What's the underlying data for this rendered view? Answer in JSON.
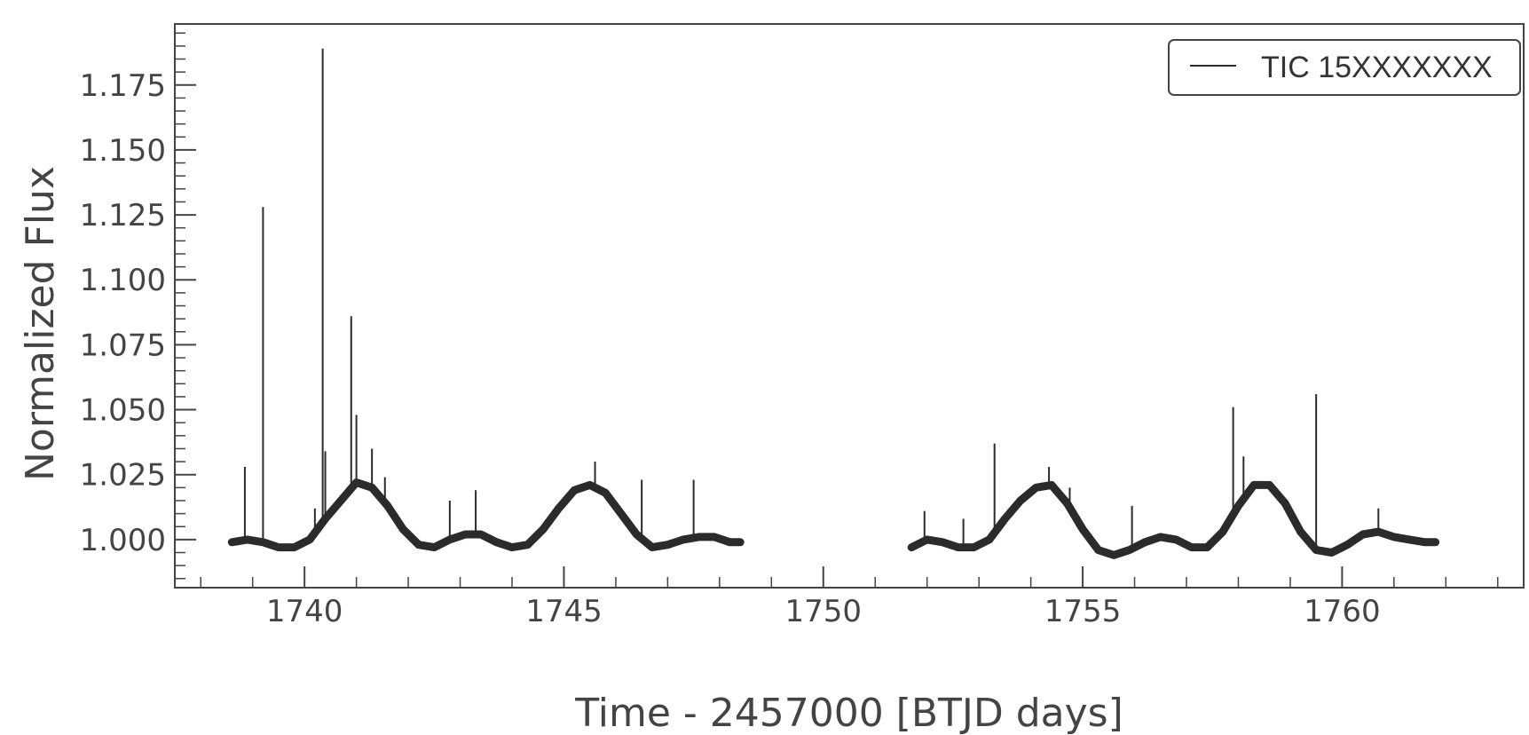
{
  "chart_data": {
    "type": "line",
    "title": "",
    "xlabel": "Time - 2457000 [BTJD days]",
    "ylabel": "Normalized Flux",
    "xlim": [
      1737.5,
      1763.5
    ],
    "ylim": [
      0.9815,
      1.1985
    ],
    "x_ticks": [
      1740,
      1745,
      1750,
      1755,
      1760
    ],
    "y_ticks": [
      1.0,
      1.025,
      1.05,
      1.075,
      1.1,
      1.125,
      1.15,
      1.175
    ],
    "x_tick_labels": [
      "1740",
      "1745",
      "1750",
      "1755",
      "1760"
    ],
    "y_tick_labels": [
      "1.000",
      "1.025",
      "1.050",
      "1.075",
      "1.100",
      "1.125",
      "1.150",
      "1.175"
    ],
    "grid": false,
    "legend_position": "top-right",
    "line_color": "#2b2b2b",
    "series": [
      {
        "name": "TIC 15XXXXXXX",
        "segments": [
          {
            "x": [
              1738.6,
              1738.9,
              1739.2,
              1739.5,
              1739.8,
              1740.1,
              1740.4,
              1740.7,
              1741.0,
              1741.3,
              1741.6,
              1741.9,
              1742.2,
              1742.5,
              1742.8,
              1743.1,
              1743.4,
              1743.7,
              1744.0,
              1744.3,
              1744.6,
              1744.9,
              1745.2,
              1745.5,
              1745.8,
              1746.1,
              1746.4,
              1746.7,
              1747.0,
              1747.3,
              1747.6,
              1747.9,
              1748.2,
              1748.4
            ],
            "y": [
              0.999,
              1.0,
              0.999,
              0.997,
              0.997,
              1.0,
              1.008,
              1.015,
              1.022,
              1.02,
              1.013,
              1.004,
              0.998,
              0.997,
              1.0,
              1.002,
              1.002,
              0.999,
              0.997,
              0.998,
              1.004,
              1.012,
              1.019,
              1.021,
              1.018,
              1.01,
              1.002,
              0.997,
              0.998,
              1.0,
              1.001,
              1.001,
              0.999,
              0.999
            ]
          },
          {
            "x": [
              1751.7,
              1752.0,
              1752.3,
              1752.6,
              1752.9,
              1753.2,
              1753.5,
              1753.8,
              1754.1,
              1754.4,
              1754.7,
              1755.0,
              1755.3,
              1755.6,
              1755.9,
              1756.2,
              1756.5,
              1756.8,
              1757.1,
              1757.4,
              1757.7,
              1758.0,
              1758.3,
              1758.6,
              1758.9,
              1759.2,
              1759.5,
              1759.8,
              1760.1,
              1760.4,
              1760.7,
              1761.0,
              1761.3,
              1761.6,
              1761.8
            ],
            "y": [
              0.997,
              1.0,
              0.999,
              0.997,
              0.997,
              1.0,
              1.008,
              1.015,
              1.02,
              1.021,
              1.014,
              1.004,
              0.996,
              0.994,
              0.996,
              0.999,
              1.001,
              1.0,
              0.997,
              0.997,
              1.003,
              1.013,
              1.021,
              1.021,
              1.014,
              1.003,
              0.996,
              0.995,
              0.998,
              1.002,
              1.003,
              1.001,
              1.0,
              0.999,
              0.999
            ]
          }
        ],
        "flares": [
          {
            "x": 1738.85,
            "y": 1.028
          },
          {
            "x": 1739.2,
            "y": 1.128
          },
          {
            "x": 1740.2,
            "y": 1.012
          },
          {
            "x": 1740.35,
            "y": 1.189
          },
          {
            "x": 1740.4,
            "y": 1.034
          },
          {
            "x": 1740.9,
            "y": 1.086
          },
          {
            "x": 1741.0,
            "y": 1.048
          },
          {
            "x": 1741.3,
            "y": 1.035
          },
          {
            "x": 1741.55,
            "y": 1.024
          },
          {
            "x": 1742.8,
            "y": 1.015
          },
          {
            "x": 1743.3,
            "y": 1.019
          },
          {
            "x": 1745.6,
            "y": 1.03
          },
          {
            "x": 1746.5,
            "y": 1.023
          },
          {
            "x": 1747.5,
            "y": 1.023
          },
          {
            "x": 1751.95,
            "y": 1.011
          },
          {
            "x": 1752.7,
            "y": 1.008
          },
          {
            "x": 1753.3,
            "y": 1.037
          },
          {
            "x": 1754.35,
            "y": 1.028
          },
          {
            "x": 1754.75,
            "y": 1.02
          },
          {
            "x": 1755.95,
            "y": 1.013
          },
          {
            "x": 1757.9,
            "y": 1.051
          },
          {
            "x": 1758.1,
            "y": 1.032
          },
          {
            "x": 1759.5,
            "y": 1.056
          },
          {
            "x": 1760.7,
            "y": 1.012
          }
        ]
      }
    ]
  }
}
